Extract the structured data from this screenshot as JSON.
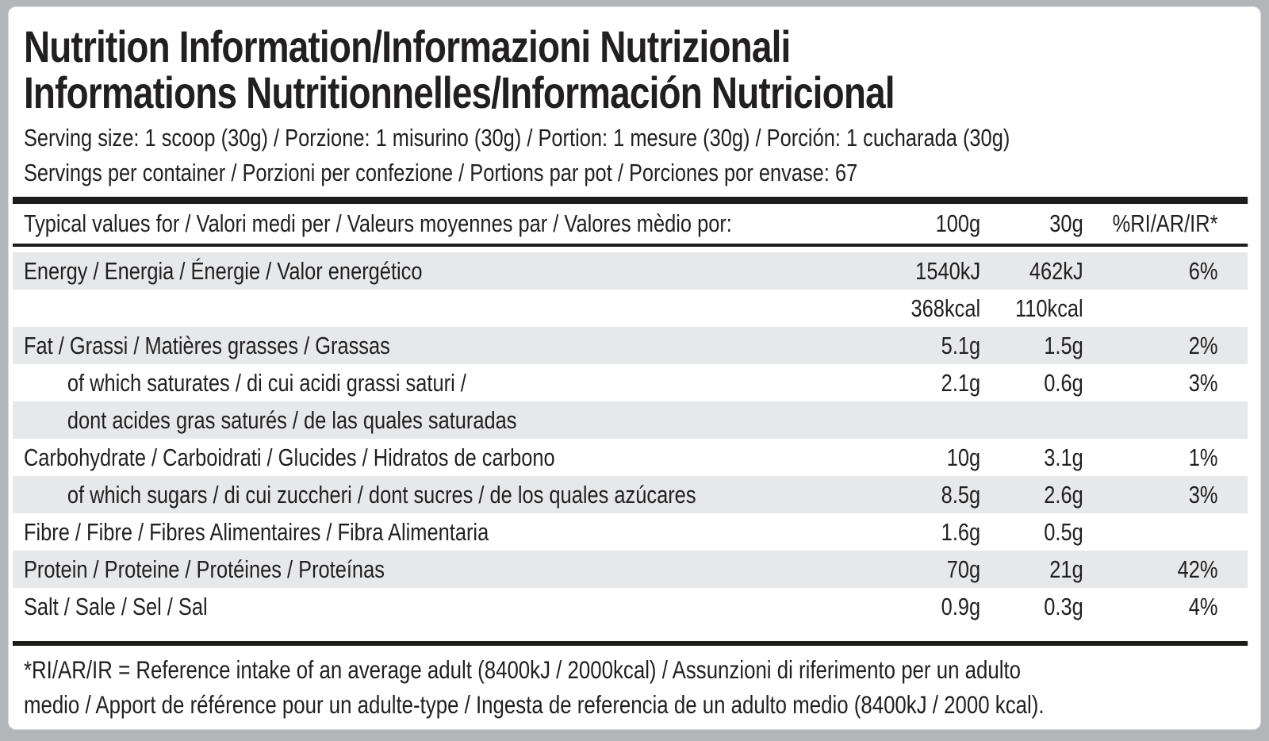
{
  "title": {
    "lines": [
      "Nutrition Information/Informazioni Nutrizionali",
      "Informations Nutritionnelles/Información Nutricional"
    ]
  },
  "serving": {
    "size": "Serving size: 1 scoop (30g) / Porzione: 1 misurino (30g) / Portion: 1 mesure (30g) / Porción: 1 cucharada (30g)",
    "per_container": "Servings per container / Porzioni per confezione / Portions par pot / Porciones por envase: 67"
  },
  "table": {
    "header": {
      "label": "Typical values for / Valori medi per / Valeurs moyennes par / Valores mèdio por:",
      "per_100g": "100g",
      "per_30g": "30g",
      "ri": "%RI/AR/IR*"
    },
    "rows": [
      {
        "label": "Energy / Energia / Énergie / Valor energético",
        "per_100g": "1540kJ",
        "per_30g": "462kJ",
        "ri": "6%",
        "shaded": true,
        "indent": false
      },
      {
        "label": "",
        "per_100g": "368kcal",
        "per_30g": "110kcal",
        "ri": "",
        "shaded": false,
        "indent": false
      },
      {
        "label": "Fat / Grassi / Matières grasses / Grassas",
        "per_100g": "5.1g",
        "per_30g": "1.5g",
        "ri": "2%",
        "shaded": true,
        "indent": false
      },
      {
        "label": "of which saturates / di cui acidi grassi saturi /",
        "per_100g": "2.1g",
        "per_30g": "0.6g",
        "ri": "3%",
        "shaded": false,
        "indent": true
      },
      {
        "label": "dont acides gras saturés / de las quales saturadas",
        "per_100g": "",
        "per_30g": "",
        "ri": "",
        "shaded": true,
        "indent": true
      },
      {
        "label": "Carbohydrate / Carboidrati / Glucides / Hidratos de carbono",
        "per_100g": "10g",
        "per_30g": "3.1g",
        "ri": "1%",
        "shaded": false,
        "indent": false
      },
      {
        "label": "of which sugars / di cui zuccheri / dont sucres / de los quales azúcares",
        "per_100g": "8.5g",
        "per_30g": "2.6g",
        "ri": "3%",
        "shaded": true,
        "indent": true
      },
      {
        "label": "Fibre / Fibre / Fibres Alimentaires / Fibra Alimentaria",
        "per_100g": "1.6g",
        "per_30g": "0.5g",
        "ri": "",
        "shaded": false,
        "indent": false
      },
      {
        "label": "Protein / Proteine / Protéines / Proteínas",
        "per_100g": "70g",
        "per_30g": "21g",
        "ri": "42%",
        "shaded": true,
        "indent": false
      },
      {
        "label": "Salt / Sale / Sel / Sal",
        "per_100g": "0.9g",
        "per_30g": "0.3g",
        "ri": "4%",
        "shaded": false,
        "indent": false
      }
    ]
  },
  "footnote": {
    "lines": [
      "*RI/AR/IR = Reference intake of an average adult (8400kJ / 2000kcal) / Assunzioni di riferimento per un adulto",
      "medio / Apport de référence pour un adulte-type / Ingesta de referencia de un adulto medio (8400kJ / 2000 kcal)."
    ]
  },
  "colors": {
    "page_background": "#b3b6b9",
    "panel_background": "#ffffff",
    "row_shade": "#e7e8e9",
    "text": "#221f20",
    "rule": "#1d1d1b"
  }
}
